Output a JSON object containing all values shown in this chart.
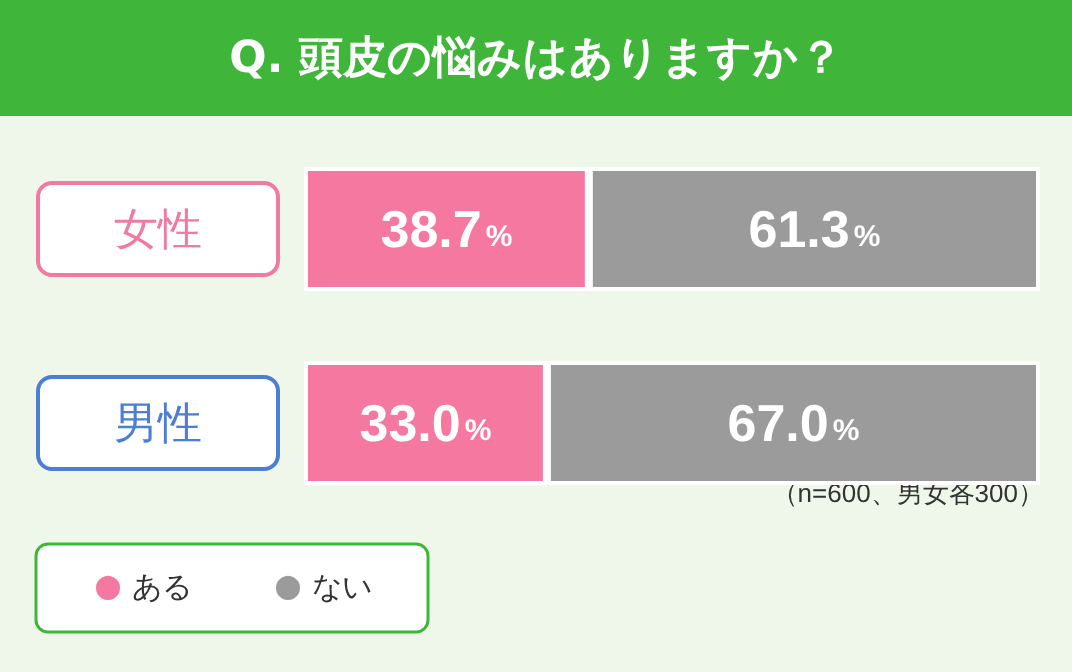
{
  "chart_data": {
    "type": "bar",
    "orientation": "horizontal",
    "stacked": true,
    "title": "Q. 頭皮の悩みはありますか？",
    "categories": [
      "女性",
      "男性"
    ],
    "series": [
      {
        "name": "ある",
        "color": "#f4789f",
        "values": [
          38.7,
          33.0
        ],
        "value_labels": [
          "38.7%",
          "33.0%"
        ]
      },
      {
        "name": "ない",
        "color": "#9b9b9b",
        "values": [
          61.3,
          67.0
        ],
        "value_labels": [
          "61.3%",
          "67.0%"
        ]
      }
    ],
    "xlim": [
      0,
      100
    ],
    "tick_labels": "y",
    "legend": "bottom left",
    "grid": false,
    "annotations": [
      "（n=600、男女各300）"
    ]
  }
}
